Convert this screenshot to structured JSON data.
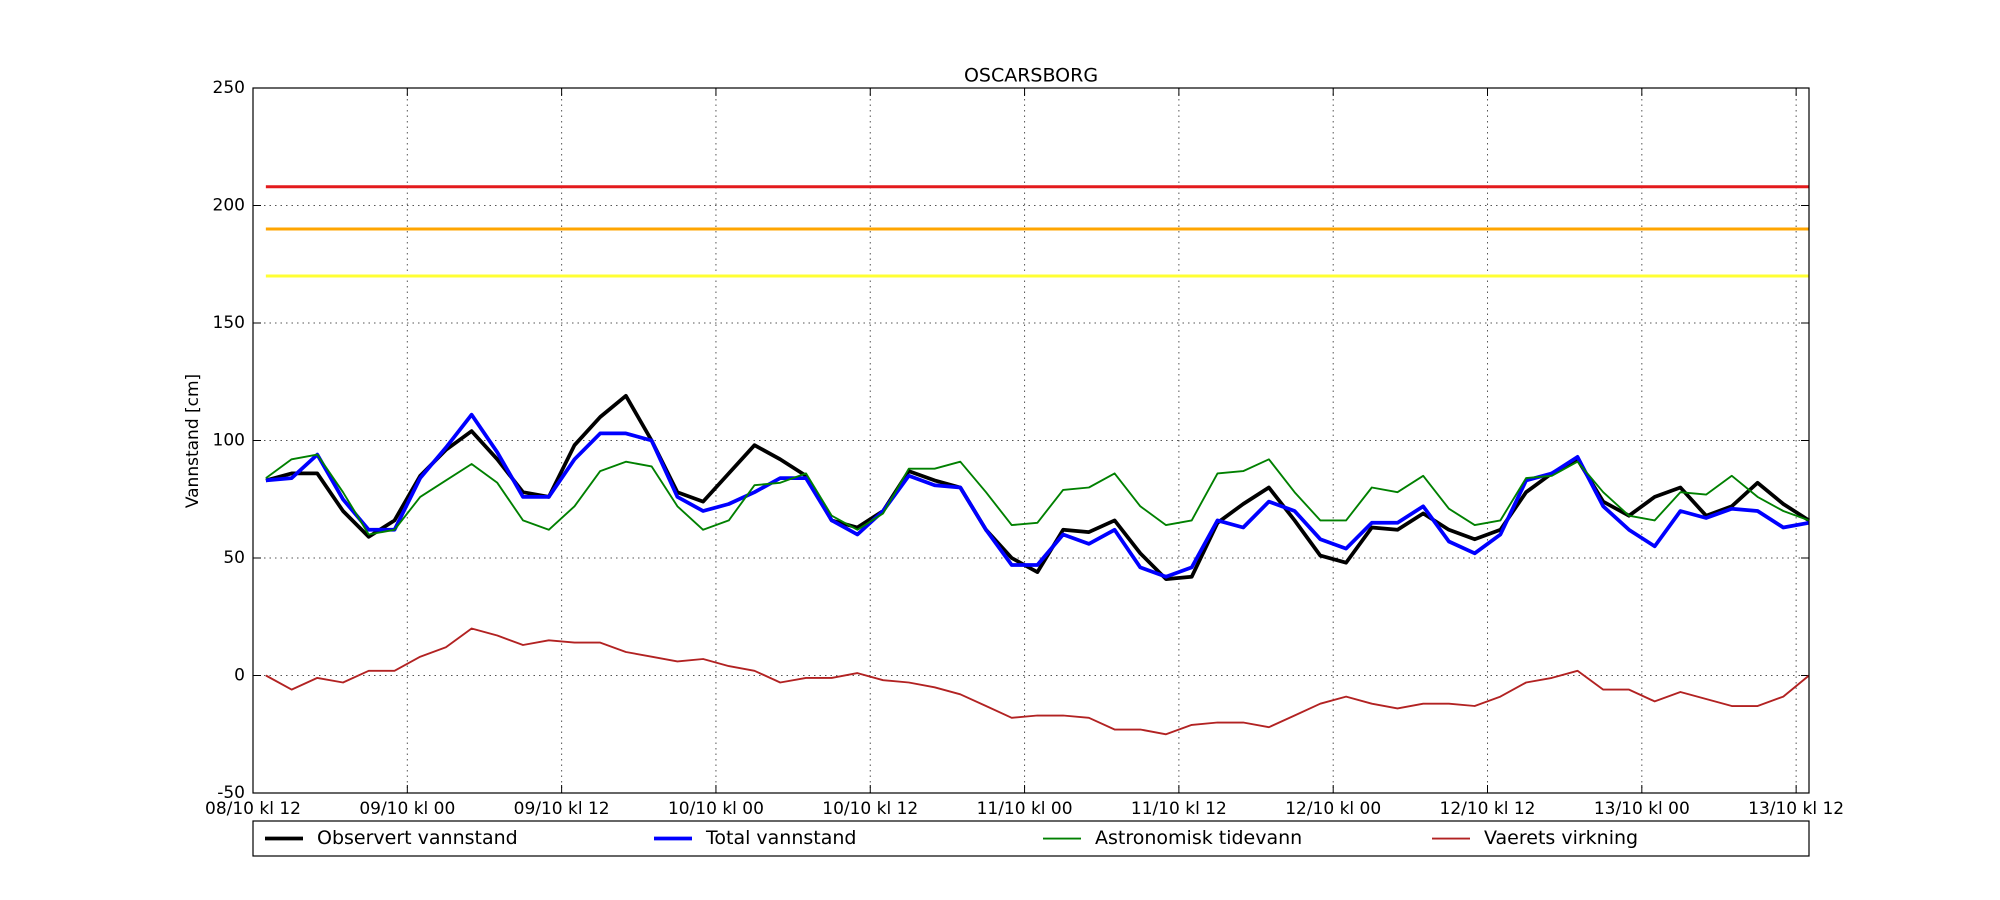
{
  "chart_data": {
    "type": "line",
    "title": "OSCARSBORG",
    "ylabel": "Vannstand [cm]",
    "xlim": [
      0,
      121
    ],
    "xticks": [
      {
        "value": 0,
        "label": "08/10 kl 12"
      },
      {
        "value": 12,
        "label": "09/10 kl 00"
      },
      {
        "value": 24,
        "label": "09/10 kl 12"
      },
      {
        "value": 36,
        "label": "10/10 kl 00"
      },
      {
        "value": 48,
        "label": "10/10 kl 12"
      },
      {
        "value": 60,
        "label": "11/10 kl 00"
      },
      {
        "value": 72,
        "label": "11/10 kl 12"
      },
      {
        "value": 84,
        "label": "12/10 kl 00"
      },
      {
        "value": 96,
        "label": "12/10 kl 12"
      },
      {
        "value": 108,
        "label": "13/10 kl 00"
      },
      {
        "value": 120,
        "label": "13/10 kl 12"
      }
    ],
    "ylim": [
      -50,
      250
    ],
    "yticks": [
      -50,
      0,
      50,
      100,
      150,
      200,
      250
    ],
    "grid": true,
    "legend": "bottom",
    "thresholds": [
      {
        "value": 208,
        "color": "#e31a1c"
      },
      {
        "value": 190,
        "color": "#ffa500"
      },
      {
        "value": 170,
        "color": "#ffff33"
      }
    ],
    "x": [
      1,
      3,
      5,
      7,
      9,
      11,
      13,
      15,
      17,
      19,
      21,
      23,
      25,
      27,
      29,
      31,
      33,
      35,
      37,
      39,
      41,
      43,
      45,
      47,
      49,
      51,
      53,
      55,
      57,
      59,
      61,
      63,
      65,
      67,
      69,
      71,
      73,
      75,
      77,
      79,
      81,
      83,
      85,
      87,
      89,
      91,
      93,
      95,
      97,
      99,
      101,
      103,
      105,
      107,
      109,
      111,
      113,
      115,
      117,
      119,
      121
    ],
    "series": [
      {
        "name": "Observert vannstand",
        "color": "#000000",
        "line_width": 3,
        "values": [
          83,
          86,
          86,
          70,
          59,
          66,
          85,
          96,
          104,
          92,
          78,
          76,
          98,
          110,
          119,
          100,
          78,
          74,
          86,
          98,
          92,
          85,
          66,
          63,
          70,
          87,
          83,
          80,
          62,
          50,
          44,
          62,
          61,
          66,
          52,
          41,
          42,
          65,
          73,
          80,
          66,
          51,
          48,
          63,
          62,
          69,
          62,
          58,
          62,
          78,
          86,
          92,
          74,
          68,
          76,
          80,
          68,
          72,
          82,
          73,
          66
        ]
      },
      {
        "name": "Total vannstand",
        "color": "#0000ff",
        "line_width": 3,
        "values": [
          83,
          84,
          94,
          75,
          62,
          62,
          84,
          97,
          111,
          95,
          76,
          76,
          92,
          103,
          103,
          100,
          76,
          70,
          73,
          78,
          84,
          84,
          66,
          60,
          70,
          85,
          81,
          80,
          62,
          47,
          47,
          60,
          56,
          62,
          46,
          42,
          46,
          66,
          63,
          74,
          70,
          58,
          54,
          65,
          65,
          72,
          57,
          52,
          60,
          83,
          86,
          93,
          72,
          62,
          55,
          70,
          67,
          71,
          70,
          63,
          65
        ]
      },
      {
        "name": "Astronomisk tidevann",
        "color": "#008000",
        "line_width": 1.5,
        "values": [
          84,
          92,
          94,
          78,
          60,
          62,
          76,
          83,
          90,
          82,
          66,
          62,
          72,
          87,
          91,
          89,
          72,
          62,
          66,
          81,
          82,
          86,
          68,
          62,
          69,
          88,
          88,
          91,
          78,
          64,
          65,
          79,
          80,
          86,
          72,
          64,
          66,
          86,
          87,
          92,
          78,
          66,
          66,
          80,
          78,
          85,
          71,
          64,
          66,
          84,
          85,
          91,
          78,
          68,
          66,
          78,
          77,
          85,
          76,
          70,
          66
        ]
      },
      {
        "name": "Vaerets virkning",
        "color": "#b22222",
        "line_width": 1.5,
        "values": [
          0,
          -6,
          -1,
          -3,
          2,
          2,
          8,
          12,
          20,
          17,
          13,
          15,
          14,
          14,
          10,
          8,
          6,
          7,
          4,
          2,
          -3,
          -1,
          -1,
          1,
          -2,
          -3,
          -5,
          -8,
          -13,
          -18,
          -17,
          -17,
          -18,
          -23,
          -23,
          -25,
          -21,
          -20,
          -20,
          -22,
          -17,
          -12,
          -9,
          -12,
          -14,
          -12,
          -12,
          -13,
          -9,
          -3,
          -1,
          2,
          -6,
          -6,
          -11,
          -7,
          -10,
          -13,
          -13,
          -9,
          0
        ]
      }
    ]
  }
}
